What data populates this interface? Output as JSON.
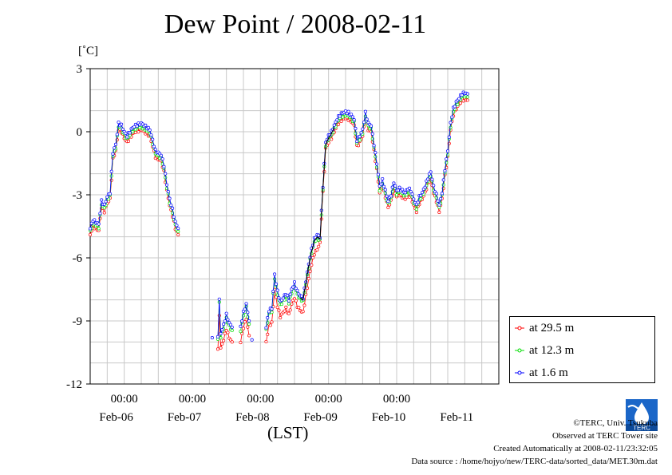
{
  "page": {
    "title": "Dew Point / 2008-02-11",
    "unit_label": "[˚C]",
    "xaxis_label": "(LST)",
    "credits": [
      "©TERC, Univ. Tsukuba",
      "Observed at TERC Tower site",
      "Created Automatically at 2008-02-11/23:32:05",
      "Data source : /home/hojyo/new/TERC-data/sorted_data/MET.30m.dat"
    ],
    "logo_text": "TERC"
  },
  "chart_data": {
    "type": "line",
    "title": "Dew Point / 2008-02-11",
    "ylabel": "[˚C]",
    "xlabel": "(LST)",
    "ylim": [
      -12,
      3
    ],
    "yticks": [
      3,
      0,
      -3,
      -6,
      -9,
      -12
    ],
    "ytick_labels": [
      "3",
      "0",
      "-3",
      "-6",
      "-9",
      "-12"
    ],
    "xlim": [
      0,
      144
    ],
    "x_unit": "hours since 2008-02-05 12:00",
    "xticks_time": [
      {
        "x": 12,
        "label": "00:00"
      },
      {
        "x": 36,
        "label": "00:00"
      },
      {
        "x": 60,
        "label": "00:00"
      },
      {
        "x": 84,
        "label": "00:00"
      },
      {
        "x": 108,
        "label": "00:00"
      }
    ],
    "xticks_date": [
      {
        "x": 12,
        "label": "Feb-06"
      },
      {
        "x": 36,
        "label": "Feb-07"
      },
      {
        "x": 60,
        "label": "Feb-08"
      },
      {
        "x": 84,
        "label": "Feb-09"
      },
      {
        "x": 108,
        "label": "Feb-10"
      },
      {
        "x": 132,
        "label": "Feb-11"
      }
    ],
    "grid": true,
    "legend_position": "right-bottom outside",
    "series": [
      {
        "name": "at 29.5 m",
        "color": "#ff0000",
        "offset": -0.3,
        "extra_dip": true
      },
      {
        "name": "at 12.3 m",
        "color": "#00dd00",
        "offset": -0.15,
        "extra_dip": false
      },
      {
        "name": "at 1.6 m",
        "color": "#0000ff",
        "offset": 0.0,
        "extra_dip": false
      }
    ],
    "base_curve": [
      [
        0,
        -4.6
      ],
      [
        1,
        -4.2
      ],
      [
        2,
        -4.3
      ],
      [
        3,
        -4.4
      ],
      [
        4,
        -3.3
      ],
      [
        5,
        -3.5
      ],
      [
        6,
        -3.1
      ],
      [
        7,
        -2.9
      ],
      [
        8,
        -1.0
      ],
      [
        9,
        -0.6
      ],
      [
        10,
        0.4
      ],
      [
        11,
        0.3
      ],
      [
        12,
        0.0
      ],
      [
        13,
        -0.2
      ],
      [
        14,
        0.0
      ],
      [
        15,
        0.2
      ],
      [
        16,
        0.3
      ],
      [
        17,
        0.35
      ],
      [
        18,
        0.4
      ],
      [
        19,
        0.3
      ],
      [
        20,
        0.2
      ],
      [
        21,
        0.1
      ],
      [
        22,
        -0.4
      ],
      [
        23,
        -0.9
      ],
      [
        24,
        -1.0
      ],
      [
        25,
        -1.1
      ],
      [
        26,
        -1.6
      ],
      [
        27,
        -2.5
      ],
      [
        28,
        -3.2
      ],
      [
        29,
        -3.7
      ],
      [
        30,
        -4.3
      ],
      [
        31,
        -4.6
      ],
      [
        null,
        null
      ],
      [
        45,
        -9.7
      ],
      [
        45.5,
        -8.0
      ],
      [
        46,
        -9.6
      ],
      [
        47,
        -9.2
      ],
      [
        48,
        -8.7
      ],
      [
        49,
        -9.1
      ],
      [
        50,
        -9.3
      ],
      [
        null,
        null
      ],
      [
        53,
        -9.3
      ],
      [
        54,
        -8.6
      ],
      [
        55,
        -8.2
      ],
      [
        56,
        -9.0
      ],
      [
        null,
        null
      ],
      [
        62,
        -9.3
      ],
      [
        63,
        -8.5
      ],
      [
        64,
        -8.4
      ],
      [
        65,
        -6.8
      ],
      [
        66,
        -7.6
      ],
      [
        67,
        -8.1
      ],
      [
        68,
        -7.9
      ],
      [
        69,
        -7.7
      ],
      [
        70,
        -8.0
      ],
      [
        71,
        -7.5
      ],
      [
        72,
        -7.2
      ],
      [
        73,
        -7.6
      ],
      [
        74,
        -7.8
      ],
      [
        75,
        -7.9
      ],
      [
        76,
        -7.1
      ],
      [
        77,
        -6.3
      ],
      [
        78,
        -5.6
      ],
      [
        79,
        -5.1
      ],
      [
        80,
        -4.9
      ],
      [
        81,
        -5.0
      ],
      [
        82,
        -2.6
      ],
      [
        83,
        -0.5
      ],
      [
        84,
        -0.2
      ],
      [
        85,
        0.0
      ],
      [
        86,
        0.3
      ],
      [
        87,
        0.6
      ],
      [
        88,
        0.8
      ],
      [
        89,
        0.9
      ],
      [
        90,
        0.95
      ],
      [
        91,
        0.9
      ],
      [
        92,
        0.8
      ],
      [
        93,
        0.6
      ],
      [
        94,
        -0.4
      ],
      [
        95,
        -0.2
      ],
      [
        96,
        0.1
      ],
      [
        97,
        0.9
      ],
      [
        98,
        0.4
      ],
      [
        99,
        0.3
      ],
      [
        100,
        -0.6
      ],
      [
        101,
        -1.5
      ],
      [
        102,
        -2.6
      ],
      [
        103,
        -2.3
      ],
      [
        104,
        -2.8
      ],
      [
        105,
        -3.3
      ],
      [
        106,
        -3.0
      ],
      [
        107,
        -2.4
      ],
      [
        108,
        -2.8
      ],
      [
        109,
        -2.7
      ],
      [
        110,
        -2.8
      ],
      [
        111,
        -2.9
      ],
      [
        112,
        -2.7
      ],
      [
        113,
        -2.8
      ],
      [
        114,
        -3.2
      ],
      [
        115,
        -3.5
      ],
      [
        116,
        -3.1
      ],
      [
        117,
        -2.9
      ],
      [
        118,
        -2.6
      ],
      [
        119,
        -2.2
      ],
      [
        120,
        -1.9
      ],
      [
        121,
        -2.6
      ],
      [
        122,
        -3.0
      ],
      [
        123,
        -3.5
      ],
      [
        124,
        -2.9
      ],
      [
        125,
        -1.8
      ],
      [
        126,
        -0.9
      ],
      [
        127,
        0.4
      ],
      [
        128,
        1.1
      ],
      [
        129,
        1.4
      ],
      [
        130,
        1.6
      ],
      [
        131,
        1.8
      ],
      [
        132,
        1.85
      ],
      [
        133,
        1.8
      ]
    ],
    "isolated_points": [
      [
        43,
        -9.8
      ],
      [
        57,
        -9.9
      ]
    ]
  }
}
